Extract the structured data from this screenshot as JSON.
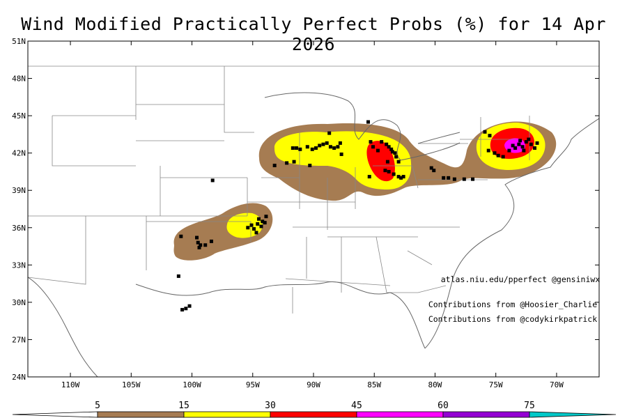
{
  "title": "Wind Modified Practically Perfect Probs (%) for 14 Apr 2026",
  "axes": {
    "lat_labels": [
      "51N",
      "48N",
      "45N",
      "42N",
      "39N",
      "36N",
      "33N",
      "30N",
      "27N",
      "24N"
    ],
    "lat_values": [
      51,
      48,
      45,
      42,
      39,
      36,
      33,
      30,
      27,
      24
    ],
    "lon_labels": [
      "110W",
      "105W",
      "100W",
      "95W",
      "90W",
      "85W",
      "80W",
      "75W",
      "70W"
    ],
    "lon_values": [
      -110,
      -105,
      -100,
      -95,
      -90,
      -85,
      -80,
      -75,
      -70
    ]
  },
  "annotations": {
    "credit": "atlas.niu.edu/pperfect @gensiniwx",
    "contrib1": "Contributions from @Hoosier_Charlie",
    "contrib2": "Contributions from @codykirkpatrick"
  },
  "colorbar": {
    "labels": [
      "5",
      "15",
      "30",
      "45",
      "60",
      "75"
    ],
    "colors": [
      "#ffffff",
      "#a67c52",
      "#ffff00",
      "#ff0000",
      "#ff00ff",
      "#9400d3",
      "#00c8c8"
    ]
  },
  "reports": [
    [
      -98.3,
      39.8
    ],
    [
      -93.2,
      41.0
    ],
    [
      -101.1,
      32.1
    ],
    [
      -100.9,
      35.3
    ],
    [
      -100.2,
      29.7
    ],
    [
      -100.5,
      29.5
    ],
    [
      -100.8,
      29.4
    ],
    [
      -99.6,
      35.2
    ],
    [
      -99.5,
      34.8
    ],
    [
      -99.3,
      34.6
    ],
    [
      -99.4,
      34.4
    ],
    [
      -98.9,
      34.6
    ],
    [
      -98.4,
      34.9
    ],
    [
      -95.4,
      36.0
    ],
    [
      -95.1,
      36.2
    ],
    [
      -94.9,
      35.9
    ],
    [
      -94.7,
      35.6
    ],
    [
      -94.6,
      36.3
    ],
    [
      -94.3,
      36.1
    ],
    [
      -94.2,
      36.5
    ],
    [
      -94.0,
      36.4
    ],
    [
      -93.9,
      36.9
    ],
    [
      -94.5,
      36.7
    ],
    [
      -91.7,
      42.4
    ],
    [
      -91.4,
      42.4
    ],
    [
      -91.1,
      42.3
    ],
    [
      -90.5,
      42.5
    ],
    [
      -90.1,
      42.3
    ],
    [
      -89.8,
      42.4
    ],
    [
      -89.5,
      42.6
    ],
    [
      -89.2,
      42.7
    ],
    [
      -88.9,
      42.8
    ],
    [
      -88.6,
      42.5
    ],
    [
      -88.3,
      42.4
    ],
    [
      -88.0,
      42.5
    ],
    [
      -87.8,
      42.8
    ],
    [
      -88.7,
      43.6
    ],
    [
      -92.2,
      41.2
    ],
    [
      -91.6,
      41.3
    ],
    [
      -90.3,
      41.0
    ],
    [
      -87.7,
      41.9
    ],
    [
      -85.5,
      44.5
    ],
    [
      -85.3,
      42.9
    ],
    [
      -85.1,
      42.5
    ],
    [
      -84.7,
      42.2
    ],
    [
      -84.4,
      42.9
    ],
    [
      -84.0,
      42.7
    ],
    [
      -83.8,
      42.5
    ],
    [
      -83.6,
      42.3
    ],
    [
      -83.5,
      42.1
    ],
    [
      -83.3,
      42.0
    ],
    [
      -83.2,
      41.7
    ],
    [
      -83.0,
      41.3
    ],
    [
      -83.9,
      41.3
    ],
    [
      -84.1,
      40.6
    ],
    [
      -83.8,
      40.5
    ],
    [
      -83.4,
      40.3
    ],
    [
      -83.0,
      40.1
    ],
    [
      -82.8,
      40.0
    ],
    [
      -82.6,
      40.1
    ],
    [
      -85.4,
      40.1
    ],
    [
      -80.3,
      40.8
    ],
    [
      -80.1,
      40.6
    ],
    [
      -79.3,
      40.0
    ],
    [
      -78.9,
      40.0
    ],
    [
      -78.4,
      39.9
    ],
    [
      -77.6,
      39.9
    ],
    [
      -76.9,
      39.9
    ],
    [
      -75.5,
      43.4
    ],
    [
      -75.9,
      43.7
    ],
    [
      -75.6,
      42.2
    ],
    [
      -75.1,
      42.0
    ],
    [
      -74.8,
      41.8
    ],
    [
      -74.4,
      41.7
    ],
    [
      -73.9,
      42.2
    ],
    [
      -73.6,
      42.6
    ],
    [
      -73.4,
      42.4
    ],
    [
      -73.1,
      42.7
    ],
    [
      -72.8,
      42.5
    ],
    [
      -72.5,
      42.9
    ],
    [
      -72.3,
      43.1
    ],
    [
      -72.1,
      42.7
    ],
    [
      -71.8,
      42.4
    ],
    [
      -71.6,
      42.8
    ],
    [
      -73.0,
      43.0
    ],
    [
      -72.7,
      42.2
    ]
  ]
}
